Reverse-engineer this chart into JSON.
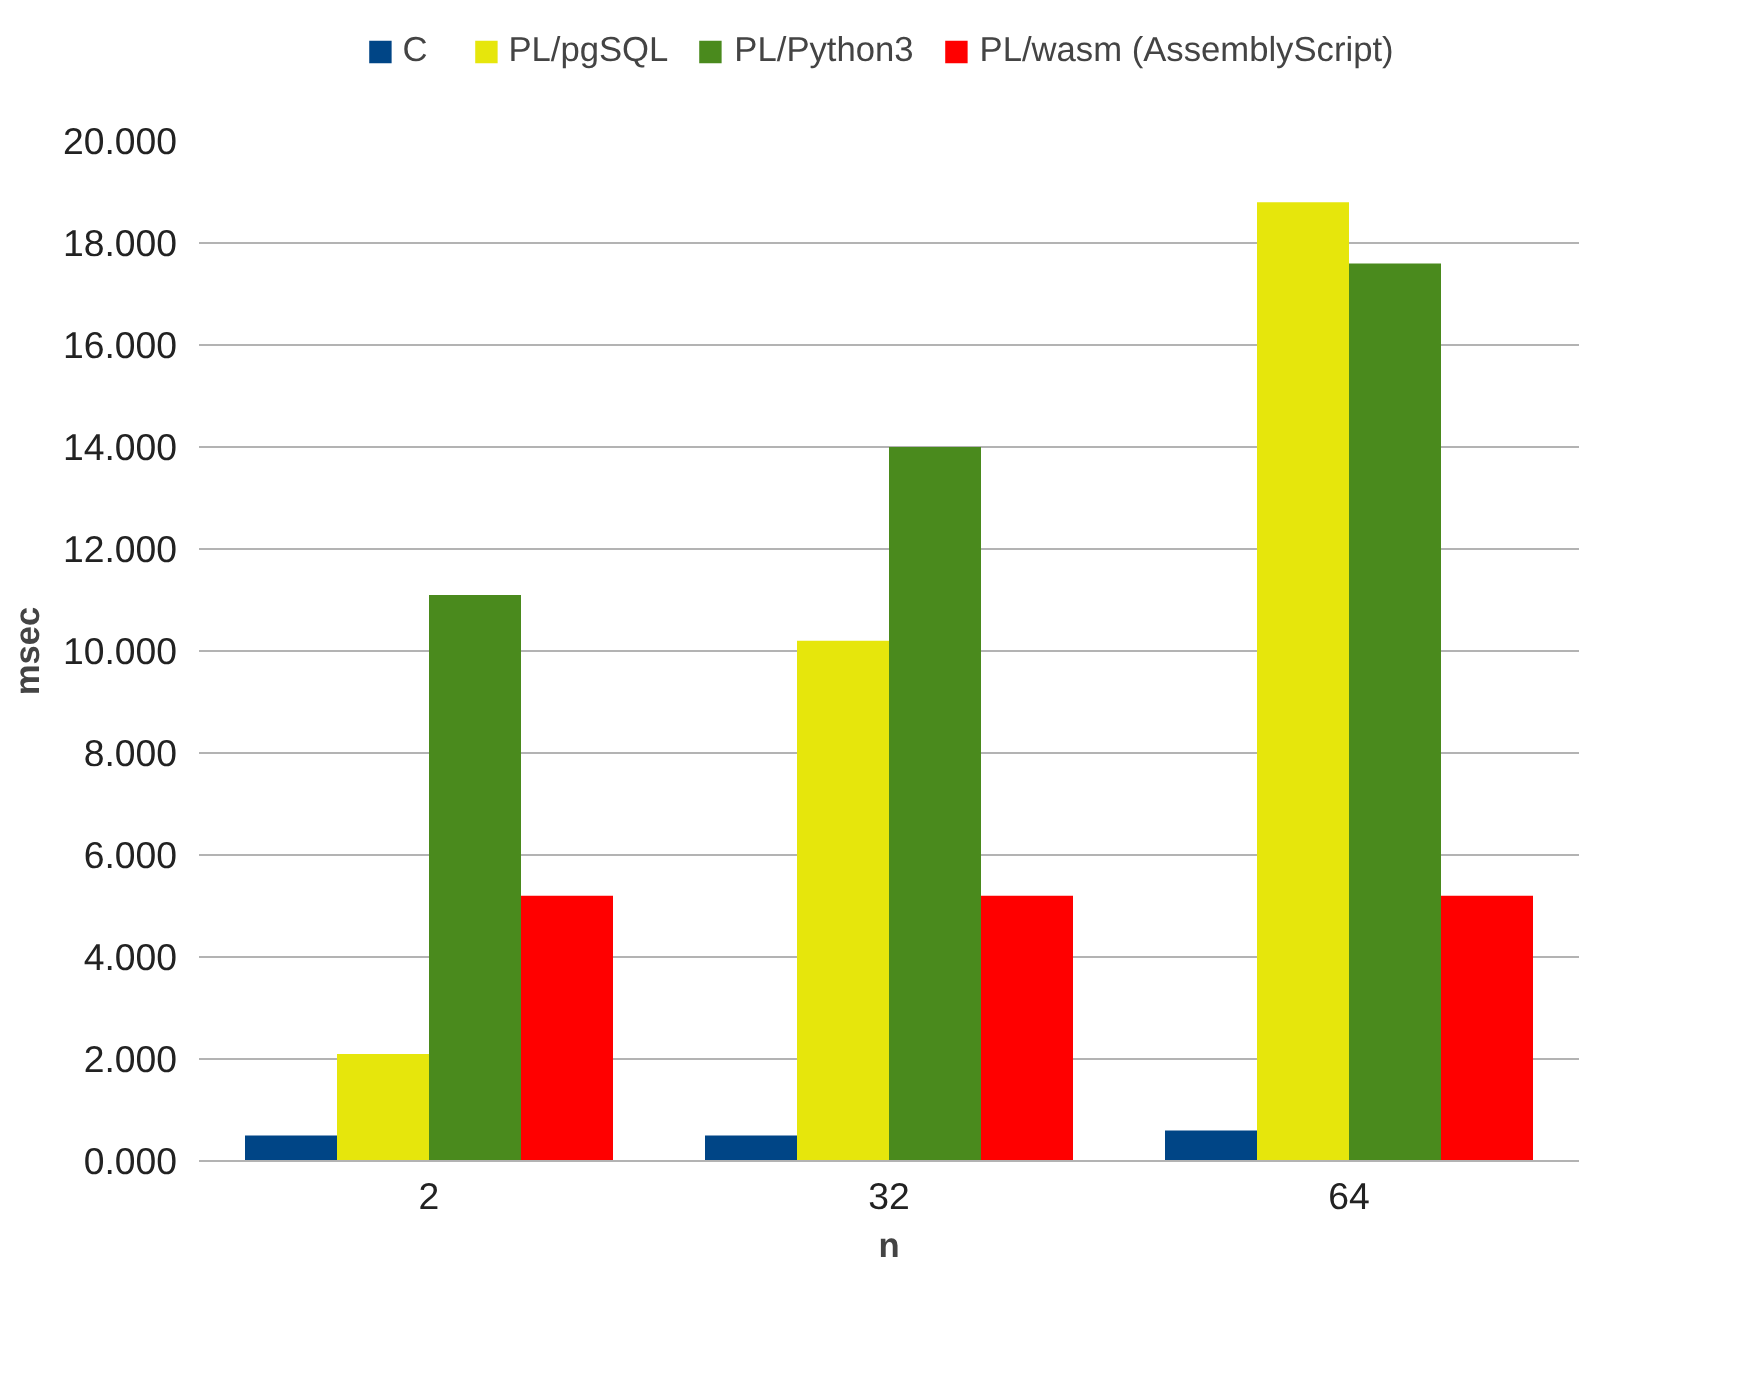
{
  "chart_data": {
    "type": "bar",
    "xlabel": "n",
    "ylabel": "msec",
    "categories": [
      "2",
      "32",
      "64"
    ],
    "series": [
      {
        "name": "C",
        "color": "#004586",
        "values": [
          0.5,
          0.5,
          0.6
        ]
      },
      {
        "name": "PL/pgSQL",
        "color": "#e6e60c",
        "values": [
          2.1,
          10.2,
          18.8
        ]
      },
      {
        "name": "PL/Python3",
        "color": "#4a8a1d",
        "values": [
          11.1,
          14.0,
          17.6
        ]
      },
      {
        "name": "PL/wasm (AssemblyScript)",
        "color": "#ff0000",
        "values": [
          5.2,
          5.2,
          5.2
        ]
      }
    ],
    "ylim": [
      0,
      20
    ],
    "yticks": [
      {
        "value": 0,
        "label": "0.000"
      },
      {
        "value": 2,
        "label": "2.000"
      },
      {
        "value": 4,
        "label": "4.000"
      },
      {
        "value": 6,
        "label": "6.000"
      },
      {
        "value": 8,
        "label": "8.000"
      },
      {
        "value": 10,
        "label": "10.000"
      },
      {
        "value": 12,
        "label": "12.000"
      },
      {
        "value": 14,
        "label": "14.000"
      },
      {
        "value": 16,
        "label": "16.000"
      },
      {
        "value": 18,
        "label": "18.000"
      },
      {
        "value": 20,
        "label": "20.000"
      }
    ],
    "grid": "y",
    "legend": "top"
  }
}
